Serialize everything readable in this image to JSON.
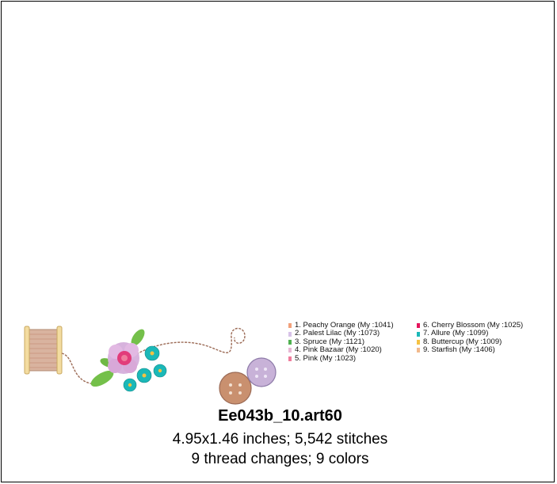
{
  "design": {
    "icon": "embroidery-design-thread-spool-flowers-buttons"
  },
  "legend": {
    "column1": [
      {
        "label": "1.  Peachy Orange (My :1041)",
        "color": "#f2a07a"
      },
      {
        "label": "2.  Palest Lilac (My :1073)",
        "color": "#d7c2e8"
      },
      {
        "label": "3.  Spruce (My :1121)",
        "color": "#4fb04f"
      },
      {
        "label": "4.  Pink Bazaar (My :1020)",
        "color": "#e8b7d4"
      },
      {
        "label": "5.  Pink (My :1023)",
        "color": "#f07c9c"
      }
    ],
    "column2": [
      {
        "label": "6.  Cherry Blossom (My :1025)",
        "color": "#e4145c"
      },
      {
        "label": "7.  Allure (My :1099)",
        "color": "#1bb8b8"
      },
      {
        "label": "8.  Buttercup (My :1009)",
        "color": "#f5c242"
      },
      {
        "label": "9.  Starfish (My :1406)",
        "color": "#f2b98c"
      }
    ]
  },
  "caption": {
    "title": "Ee043b_10.art60",
    "size": "4.95x1.46 inches; 5,542 stitches",
    "changes": "9 thread changes; 9 colors"
  }
}
